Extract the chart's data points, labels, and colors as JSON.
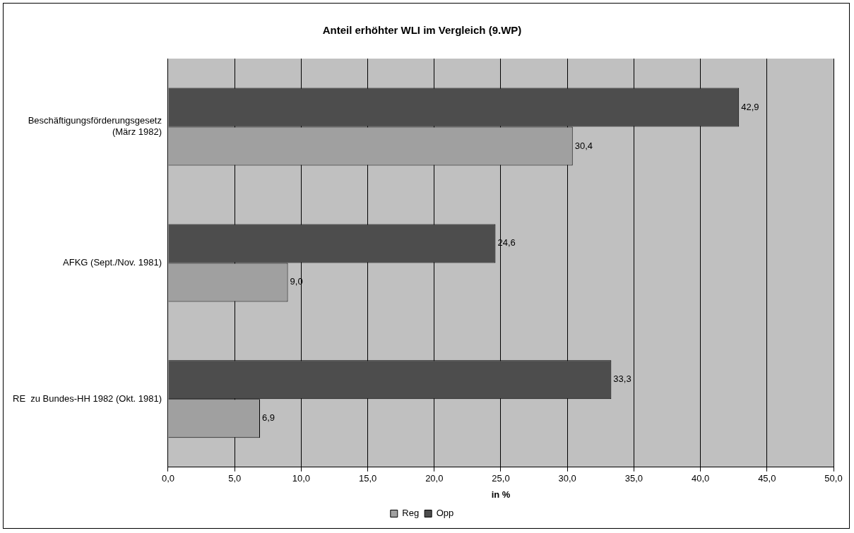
{
  "chart_data": {
    "type": "bar",
    "orientation": "horizontal",
    "title": "Anteil erhöhter WLI im Vergleich (9.WP)",
    "xlabel": "in %",
    "categories": [
      "Beschäftigungsförderungsgesetz\n(März 1982)",
      "AFKG (Sept./Nov. 1981)",
      "RE  zu Bundes-HH 1982 (Okt. 1981)"
    ],
    "series": [
      {
        "name": "Reg",
        "color": "#a0a0a0",
        "values": [
          30.4,
          9.0,
          6.9
        ],
        "value_labels": [
          "30,4",
          "9,0",
          "6,9"
        ]
      },
      {
        "name": "Opp",
        "color": "#4d4d4d",
        "values": [
          42.9,
          24.6,
          33.3
        ],
        "value_labels": [
          "42,9",
          "24,6",
          "33,3"
        ]
      }
    ],
    "xlim": [
      0,
      50
    ],
    "xticks": [
      {
        "value": 0,
        "label": "0,0"
      },
      {
        "value": 5,
        "label": "5,0"
      },
      {
        "value": 10,
        "label": "10,0"
      },
      {
        "value": 15,
        "label": "15,0"
      },
      {
        "value": 20,
        "label": "20,0"
      },
      {
        "value": 25,
        "label": "25,0"
      },
      {
        "value": 30,
        "label": "30,0"
      },
      {
        "value": 35,
        "label": "35,0"
      },
      {
        "value": 40,
        "label": "40,0"
      },
      {
        "value": 45,
        "label": "45,0"
      },
      {
        "value": 50,
        "label": "50,0"
      }
    ],
    "grid": "x",
    "legend": "bottom"
  }
}
